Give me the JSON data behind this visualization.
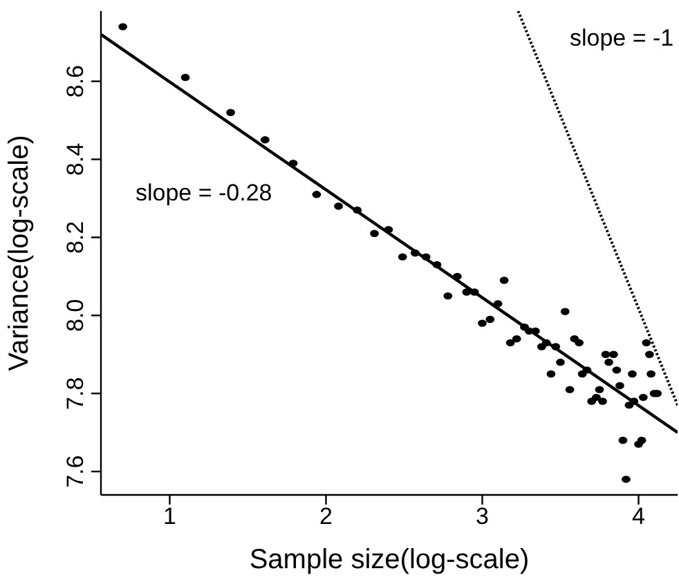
{
  "chart_data": {
    "type": "scatter",
    "xlabel": "Sample size(log-scale)",
    "ylabel": "Variance(log-scale)",
    "xlim": [
      0.56,
      4.25
    ],
    "ylim": [
      7.54,
      8.78
    ],
    "xticks": [
      1,
      2,
      3,
      4
    ],
    "yticks": [
      7.6,
      7.8,
      {
        "value": 8,
        "label": "8.0"
      },
      8.2,
      8.4,
      8.6
    ],
    "series": [
      {
        "color": "#000000",
        "marker": "circle",
        "x": [
          0.7,
          1.1,
          1.39,
          1.61,
          1.79,
          1.94,
          2.08,
          2.2,
          2.31,
          2.4,
          2.49,
          2.57,
          2.64,
          2.71,
          2.84,
          2.78,
          2.9,
          2.95,
          3.14,
          3.1,
          3.0,
          3.05,
          3.18,
          3.22,
          3.27,
          3.3,
          3.34,
          3.38,
          3.41,
          3.47,
          3.53,
          3.5,
          3.44,
          3.59,
          3.62,
          3.64,
          3.67,
          3.56,
          3.75,
          3.7,
          3.73,
          3.77,
          3.79,
          3.84,
          3.81,
          3.86,
          3.88,
          3.96,
          3.94,
          3.97,
          4.03,
          4.05,
          4.07,
          4.08,
          4.1,
          4.12,
          3.9,
          4.0,
          4.02,
          3.92
        ],
        "values": [
          8.74,
          8.61,
          8.52,
          8.45,
          8.39,
          8.31,
          8.28,
          8.27,
          8.21,
          8.22,
          8.15,
          8.16,
          8.15,
          8.13,
          8.1,
          8.05,
          8.06,
          8.06,
          8.09,
          8.03,
          7.98,
          7.99,
          7.93,
          7.94,
          7.97,
          7.96,
          7.96,
          7.92,
          7.93,
          7.92,
          8.01,
          7.88,
          7.85,
          7.94,
          7.93,
          7.85,
          7.86,
          7.81,
          7.81,
          7.78,
          7.79,
          7.78,
          7.9,
          7.9,
          7.88,
          7.86,
          7.82,
          7.85,
          7.77,
          7.78,
          7.79,
          7.93,
          7.9,
          7.85,
          7.8,
          7.8,
          7.68,
          7.67,
          7.68,
          7.58
        ]
      },
      {
        "type": "line",
        "color": "#000000",
        "marker": "none",
        "line_style": "solid",
        "x": [
          0.56,
          4.25
        ],
        "values": [
          8.72,
          7.7
        ]
      },
      {
        "type": "line",
        "color": "#000000",
        "marker": "none",
        "line_style": "dotted",
        "x": [
          3.23,
          4.25
        ],
        "values": [
          8.78,
          7.77
        ]
      }
    ],
    "annotations": [
      "slope = -0.28",
      "slope = -1"
    ]
  }
}
